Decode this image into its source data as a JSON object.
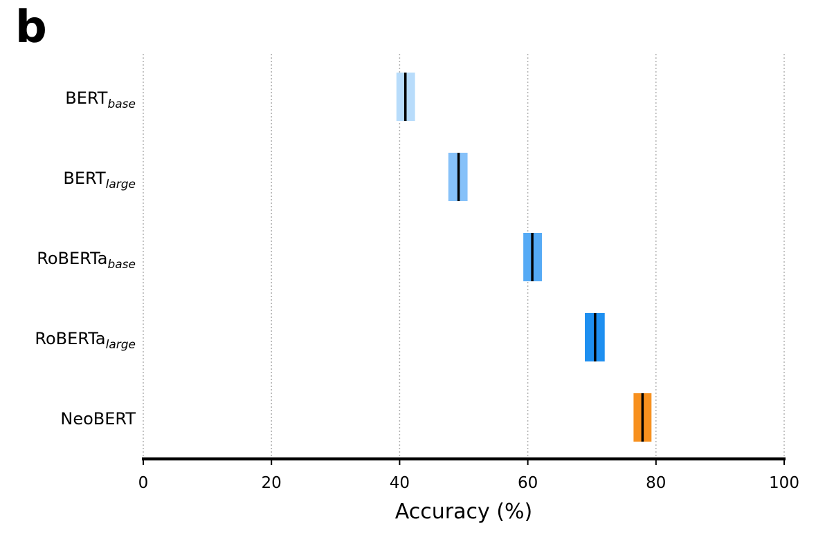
{
  "panel_label": "b",
  "chart_data": {
    "type": "range",
    "xlabel": "Accuracy (%)",
    "ylabel": "",
    "title": "",
    "xlim": [
      0,
      100
    ],
    "xticks": [
      0,
      20,
      40,
      60,
      80,
      100
    ],
    "grid": "vertical-dotted",
    "categories": [
      {
        "main": "BERT",
        "sub": "base",
        "low": 39.5,
        "high": 42.4,
        "mean": 40.9,
        "color": "#b8dcfb"
      },
      {
        "main": "BERT",
        "sub": "large",
        "low": 47.6,
        "high": 50.6,
        "mean": 49.2,
        "color": "#86c1f9"
      },
      {
        "main": "RoBERTa",
        "sub": "base",
        "low": 59.3,
        "high": 62.2,
        "mean": 60.7,
        "color": "#55aaf5"
      },
      {
        "main": "RoBERTa",
        "sub": "large",
        "low": 68.9,
        "high": 72.0,
        "mean": 70.5,
        "color": "#1e8ff0"
      },
      {
        "main": "NeoBERT",
        "sub": "",
        "low": 76.5,
        "high": 79.3,
        "mean": 77.9,
        "color": "#f7901e"
      }
    ]
  }
}
